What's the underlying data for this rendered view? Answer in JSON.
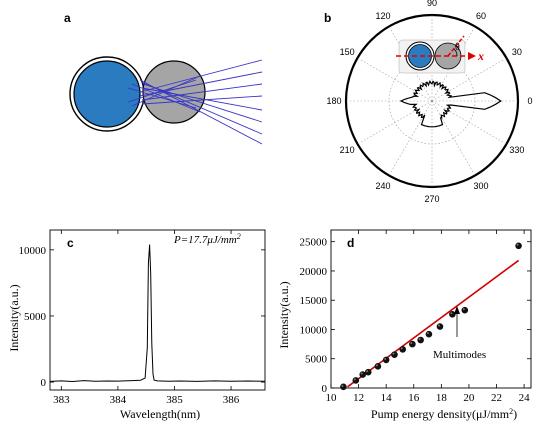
{
  "panels": {
    "a": {
      "label": "a"
    },
    "b": {
      "label": "b"
    },
    "c": {
      "label": "c"
    },
    "d": {
      "label": "d"
    }
  },
  "colors": {
    "blue": "#2a7bc0",
    "gray": "#a5a5a5",
    "ray": "#3535c8",
    "red_dash": "#e00000",
    "fit": "#d40000",
    "polar_trace": "#000000"
  },
  "polar": {
    "angle_labels": [
      "0",
      "30",
      "60",
      "90",
      "120",
      "150",
      "180",
      "210",
      "240",
      "270",
      "300",
      "330"
    ],
    "x_label": "x",
    "theta_label": "θ"
  },
  "chart_data": [
    {
      "id": "c",
      "type": "line",
      "annotation": "P=17.7μJ/mm",
      "annotation_sup": "2",
      "xlabel": "Wavelength(nm)",
      "ylabel": "Intensity(a.u.)",
      "xlim": [
        382.8,
        386.6
      ],
      "ylim": [
        -600,
        11500
      ],
      "xticks": [
        383,
        384,
        385,
        386
      ],
      "yticks": [
        0,
        5000,
        10000
      ],
      "x": [
        382.8,
        383.0,
        383.2,
        383.4,
        383.6,
        383.8,
        384.0,
        384.2,
        384.4,
        384.48,
        384.52,
        384.54,
        384.56,
        384.58,
        384.6,
        384.62,
        384.64,
        384.7,
        384.9,
        385.1,
        385.4,
        385.7,
        386.0,
        386.3,
        386.6
      ],
      "y": [
        50,
        90,
        40,
        110,
        60,
        80,
        70,
        100,
        140,
        300,
        2600,
        9000,
        10400,
        8200,
        2900,
        600,
        150,
        90,
        60,
        80,
        50,
        90,
        60,
        80,
        60
      ]
    },
    {
      "id": "d",
      "type": "scatter",
      "xlabel": "Pump energy density(μJ/mm",
      "xlabel_sup": "2",
      "xlabel_end": ")",
      "ylabel": "Intensity(a.u.)",
      "xlim": [
        10,
        24.5
      ],
      "ylim": [
        0,
        27000
      ],
      "xticks": [
        10,
        12,
        14,
        16,
        18,
        20,
        22,
        24
      ],
      "yticks": [
        0,
        5000,
        10000,
        15000,
        20000,
        25000
      ],
      "x": [
        10.9,
        11.8,
        12.3,
        12.7,
        13.4,
        14.0,
        14.6,
        15.2,
        15.9,
        16.5,
        17.1,
        17.9,
        18.8,
        19.7,
        23.6
      ],
      "y": [
        200,
        1300,
        2300,
        2700,
        3700,
        4800,
        5700,
        6600,
        7500,
        8200,
        9200,
        10500,
        12600,
        13300,
        24300
      ],
      "fit": {
        "x": [
          11.2,
          23.6
        ],
        "y": [
          200,
          21800
        ]
      },
      "annotation": "Multimodes"
    }
  ]
}
